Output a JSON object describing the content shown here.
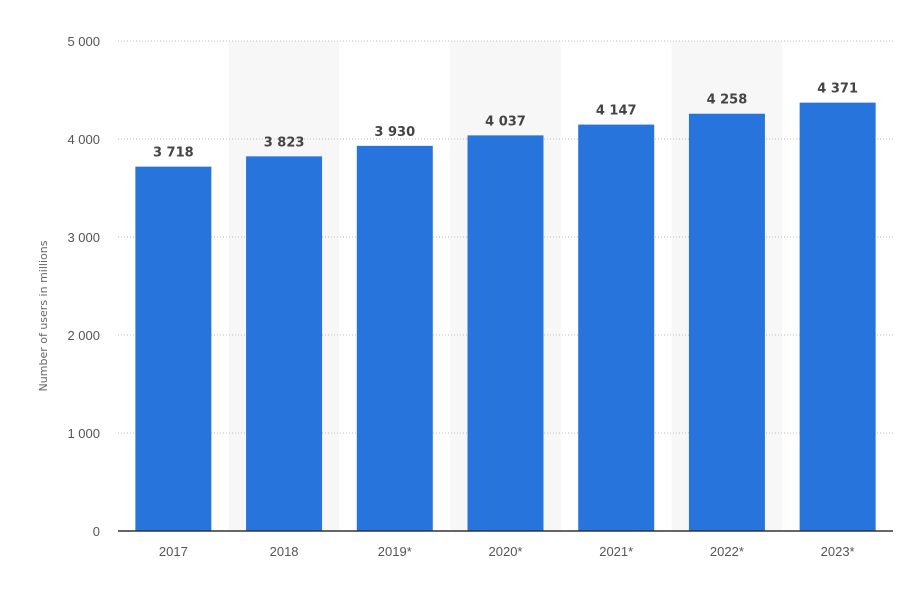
{
  "chart_data": {
    "type": "bar",
    "categories": [
      "2017",
      "2018",
      "2019*",
      "2020*",
      "2021*",
      "2022*",
      "2023*"
    ],
    "values": [
      3718,
      3823,
      3930,
      4037,
      4147,
      4258,
      4371
    ],
    "value_labels": [
      "3 718",
      "3 823",
      "3 930",
      "4 037",
      "4 147",
      "4 258",
      "4 371"
    ],
    "ylabel": "Number of users in millions",
    "xlabel": "",
    "title": "",
    "ylim": [
      0,
      5000
    ],
    "yticks": [
      0,
      1000,
      2000,
      3000,
      4000,
      5000
    ],
    "ytick_labels": [
      "0",
      "1 000",
      "2 000",
      "3 000",
      "4 000",
      "5 000"
    ],
    "grid": true,
    "legend": "none",
    "bar_color": "#2874dd",
    "band_color": "#f7f7f7"
  }
}
